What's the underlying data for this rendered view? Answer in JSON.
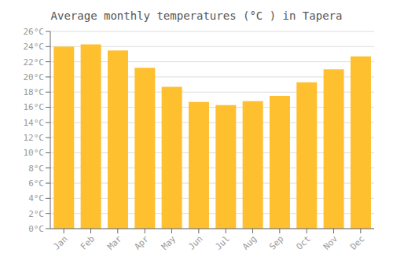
{
  "chart_data": {
    "type": "bar",
    "title": "Average monthly temperatures (°C ) in Tapera",
    "categories": [
      "Jan",
      "Feb",
      "Mar",
      "Apr",
      "May",
      "Jun",
      "Jul",
      "Aug",
      "Sep",
      "Oct",
      "Nov",
      "Dec"
    ],
    "values": [
      24.0,
      24.3,
      23.5,
      21.2,
      18.7,
      16.7,
      16.3,
      16.8,
      17.5,
      19.3,
      21.0,
      22.7
    ],
    "color": "#FFC030",
    "ylim": [
      0,
      26
    ],
    "yticks": [
      {
        "value": 0,
        "label": "0°C"
      },
      {
        "value": 2,
        "label": "2°C"
      },
      {
        "value": 4,
        "label": "4°C"
      },
      {
        "value": 6,
        "label": "6°C"
      },
      {
        "value": 8,
        "label": "8°C"
      },
      {
        "value": 10,
        "label": "10°C"
      },
      {
        "value": 12,
        "label": "12°C"
      },
      {
        "value": 14,
        "label": "14°C"
      },
      {
        "value": 16,
        "label": "16°C"
      },
      {
        "value": 18,
        "label": "18°C"
      },
      {
        "value": 20,
        "label": "20°C"
      },
      {
        "value": 22,
        "label": "22°C"
      },
      {
        "value": 24,
        "label": "24°C"
      },
      {
        "value": 26,
        "label": "26°C"
      }
    ],
    "grid": true
  }
}
